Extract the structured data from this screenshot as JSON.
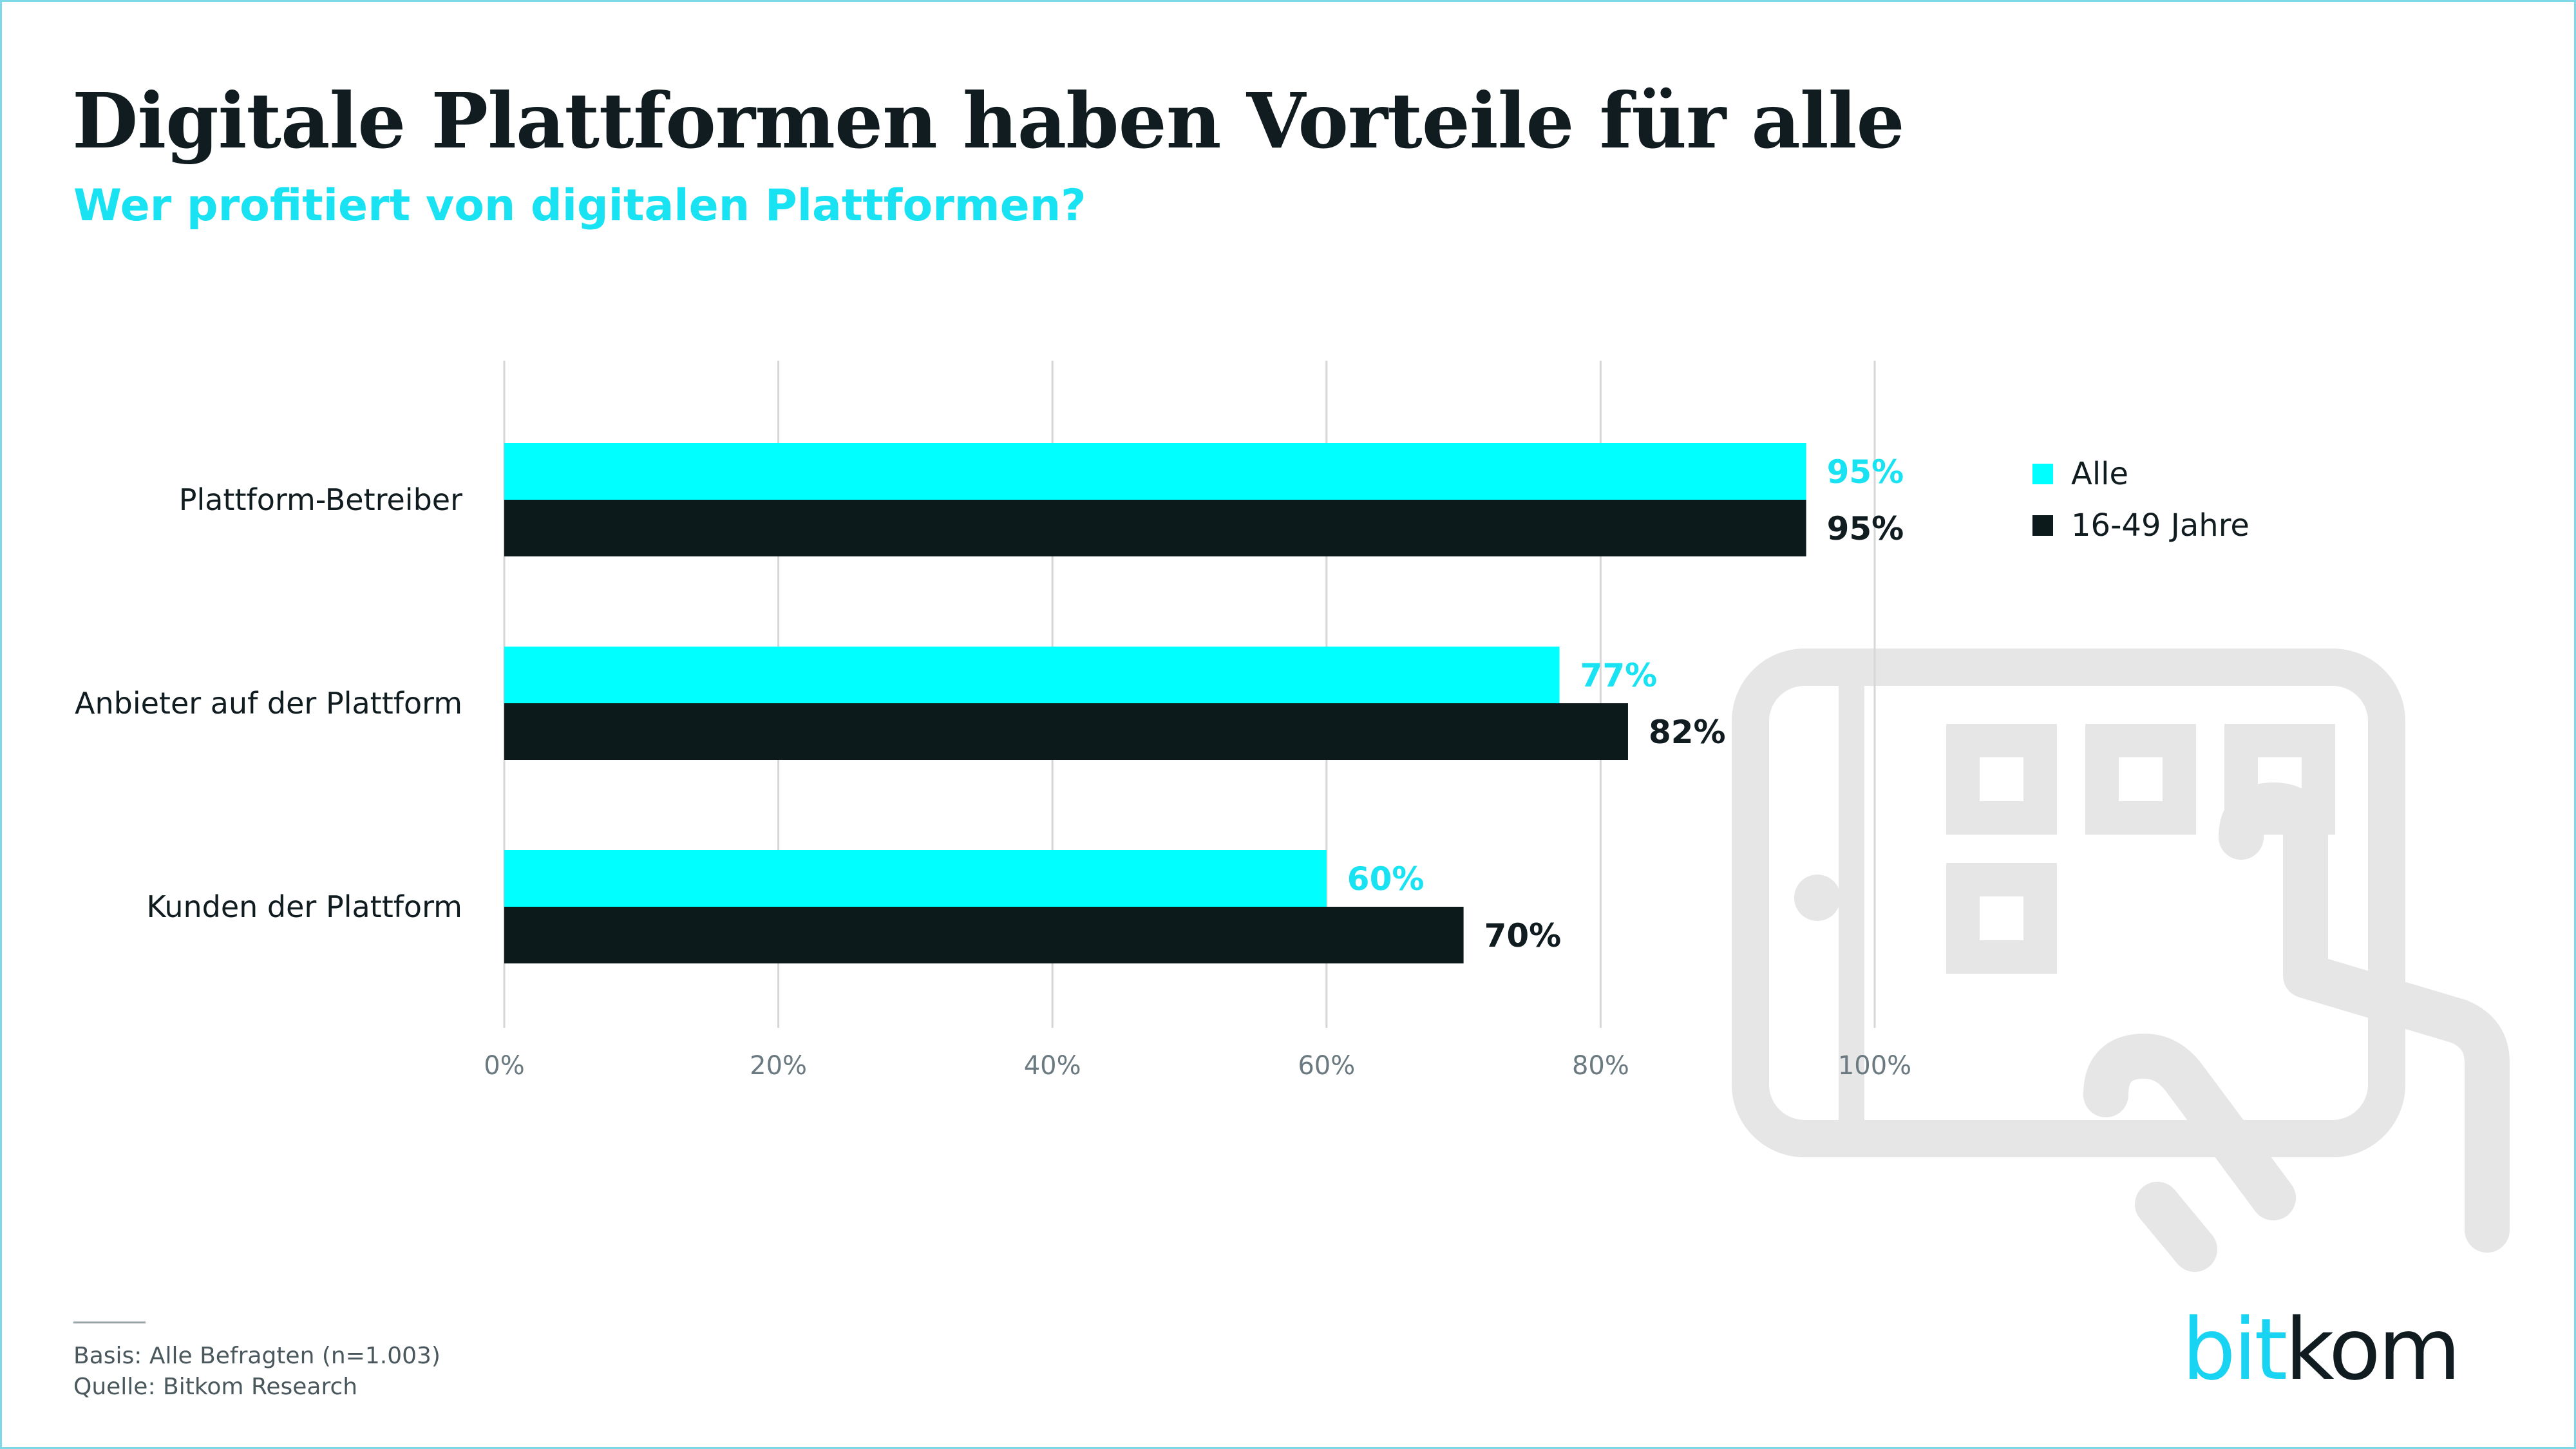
{
  "title": "Digitale Plattformen haben Vorteile für alle",
  "subtitle": "Wer profitiert von digitalen Plattformen?",
  "footer": {
    "basis": "Basis: Alle Befragten (n=1.003)",
    "source": "Quelle: Bitkom Research"
  },
  "logo": {
    "part1": "bit",
    "part2": "kom"
  },
  "decoration": {
    "icon": "tablet-touch-icon",
    "color": "#e6e6e6"
  },
  "colors": {
    "alle": "#00ffff",
    "jahre": "#0c1a1c",
    "cyan_text": "#19e3f3",
    "dark_text": "#101c20"
  },
  "chart_data": {
    "type": "bar",
    "orientation": "horizontal",
    "categories": [
      "Plattform-Betreiber",
      "Anbieter auf der Plattform",
      "Kunden der Plattform"
    ],
    "series": [
      {
        "name": "Alle",
        "values": [
          95,
          77,
          60
        ],
        "color": "#00ffff",
        "label_color": "#19e3f3"
      },
      {
        "name": "16-49 Jahre",
        "values": [
          95,
          82,
          70
        ],
        "color": "#0c1a1c",
        "label_color": "#101c20"
      }
    ],
    "value_suffix": "%",
    "xlim": [
      0,
      100
    ],
    "xticks": [
      0,
      20,
      40,
      60,
      80,
      100
    ],
    "xtick_labels": [
      "0%",
      "20%",
      "40%",
      "60%",
      "80%",
      "100%"
    ],
    "grid": true,
    "legend_position": "top-right"
  }
}
